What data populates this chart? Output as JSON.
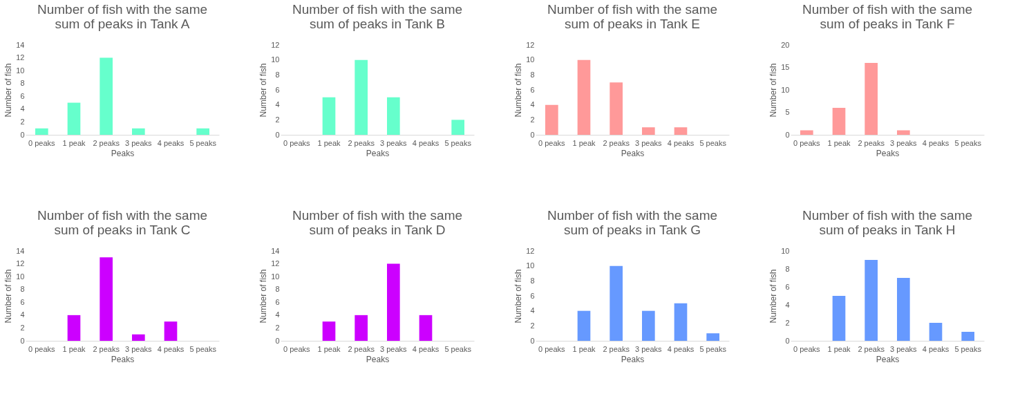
{
  "chart_data": [
    {
      "type": "bar",
      "title": "Number of fish with the same sum of peaks in Tank A",
      "xlabel": "Peaks",
      "ylabel": "Number of fish",
      "categories": [
        "0 peaks",
        "1 peak",
        "2 peaks",
        "3 peaks",
        "4 peaks",
        "5 peaks"
      ],
      "values": [
        1,
        5,
        12,
        1,
        0,
        1
      ],
      "color": "#66ffcc",
      "ylim": [
        0,
        14
      ],
      "yticks": [
        0,
        2,
        4,
        6,
        8,
        10,
        12,
        14
      ],
      "grid": false
    },
    {
      "type": "bar",
      "title": "Number of fish with the same sum of peaks in Tank B",
      "xlabel": "Peaks",
      "ylabel": "Number of fish",
      "categories": [
        "0 peaks",
        "1 peak",
        "2 peaks",
        "3 peaks",
        "4 peaks",
        "5 peaks"
      ],
      "values": [
        0,
        5,
        10,
        5,
        0,
        2
      ],
      "color": "#66ffcc",
      "ylim": [
        0,
        12
      ],
      "yticks": [
        0,
        2,
        4,
        6,
        8,
        10,
        12
      ],
      "grid": false
    },
    {
      "type": "bar",
      "title": "Number of fish with the same sum of peaks in Tank E",
      "xlabel": "Peaks",
      "ylabel": "Number of fish",
      "categories": [
        "0 peaks",
        "1 peak",
        "2 peaks",
        "3 peaks",
        "4 peaks",
        "5 peaks"
      ],
      "values": [
        4,
        10,
        7,
        1,
        1,
        0
      ],
      "color": "#ff9999",
      "ylim": [
        0,
        12
      ],
      "yticks": [
        0,
        2,
        4,
        6,
        8,
        10,
        12
      ],
      "grid": false
    },
    {
      "type": "bar",
      "title": "Number of fish with the same sum of peaks in Tank F",
      "xlabel": "Peaks",
      "ylabel": "Number of fish",
      "categories": [
        "0 peaks",
        "1 peak",
        "2 peaks",
        "3 peaks",
        "4 peaks",
        "5 peaks"
      ],
      "values": [
        1,
        6,
        16,
        1,
        0,
        0
      ],
      "color": "#ff9999",
      "ylim": [
        0,
        20
      ],
      "yticks": [
        0,
        5,
        10,
        15,
        20
      ],
      "grid": false
    },
    {
      "type": "bar",
      "title": "Number of fish with the same sum of peaks in Tank C",
      "xlabel": "Peaks",
      "ylabel": "Number of fish",
      "categories": [
        "0 peaks",
        "1 peak",
        "2 peaks",
        "3 peaks",
        "4 peaks",
        "5 peaks"
      ],
      "values": [
        0,
        4,
        13,
        1,
        3,
        0
      ],
      "color": "#cc00ff",
      "ylim": [
        0,
        14
      ],
      "yticks": [
        0,
        2,
        4,
        6,
        8,
        10,
        12,
        14
      ],
      "grid": false
    },
    {
      "type": "bar",
      "title": "Number of fish with the same sum of peaks in Tank D",
      "xlabel": "Peaks",
      "ylabel": "Number of fish",
      "categories": [
        "0 peaks",
        "1 peak",
        "2 peaks",
        "3 peaks",
        "4 peaks",
        "5 peaks"
      ],
      "values": [
        0,
        3,
        4,
        12,
        4,
        0
      ],
      "color": "#cc00ff",
      "ylim": [
        0,
        14
      ],
      "yticks": [
        0,
        2,
        4,
        6,
        8,
        10,
        12,
        14
      ],
      "grid": false
    },
    {
      "type": "bar",
      "title": "Number of fish with the same sum of peaks in Tank G",
      "xlabel": "Peaks",
      "ylabel": "Number of fish",
      "categories": [
        "0 peaks",
        "1 peak",
        "2 peaks",
        "3 peaks",
        "4 peaks",
        "5 peaks"
      ],
      "values": [
        0,
        4,
        10,
        4,
        5,
        1
      ],
      "color": "#6699ff",
      "ylim": [
        0,
        12
      ],
      "yticks": [
        0,
        2,
        4,
        6,
        8,
        10,
        12
      ],
      "grid": false
    },
    {
      "type": "bar",
      "title": "Number of fish with the same sum of peaks in Tank H",
      "xlabel": "Peaks",
      "ylabel": "Number of fish",
      "categories": [
        "0 peaks",
        "1 peak",
        "2 peaks",
        "3 peaks",
        "4 peaks",
        "5 peaks"
      ],
      "values": [
        0,
        5,
        9,
        7,
        2,
        1
      ],
      "color": "#6699ff",
      "ylim": [
        0,
        10
      ],
      "yticks": [
        0,
        2,
        4,
        6,
        8,
        10
      ],
      "grid": false
    }
  ]
}
